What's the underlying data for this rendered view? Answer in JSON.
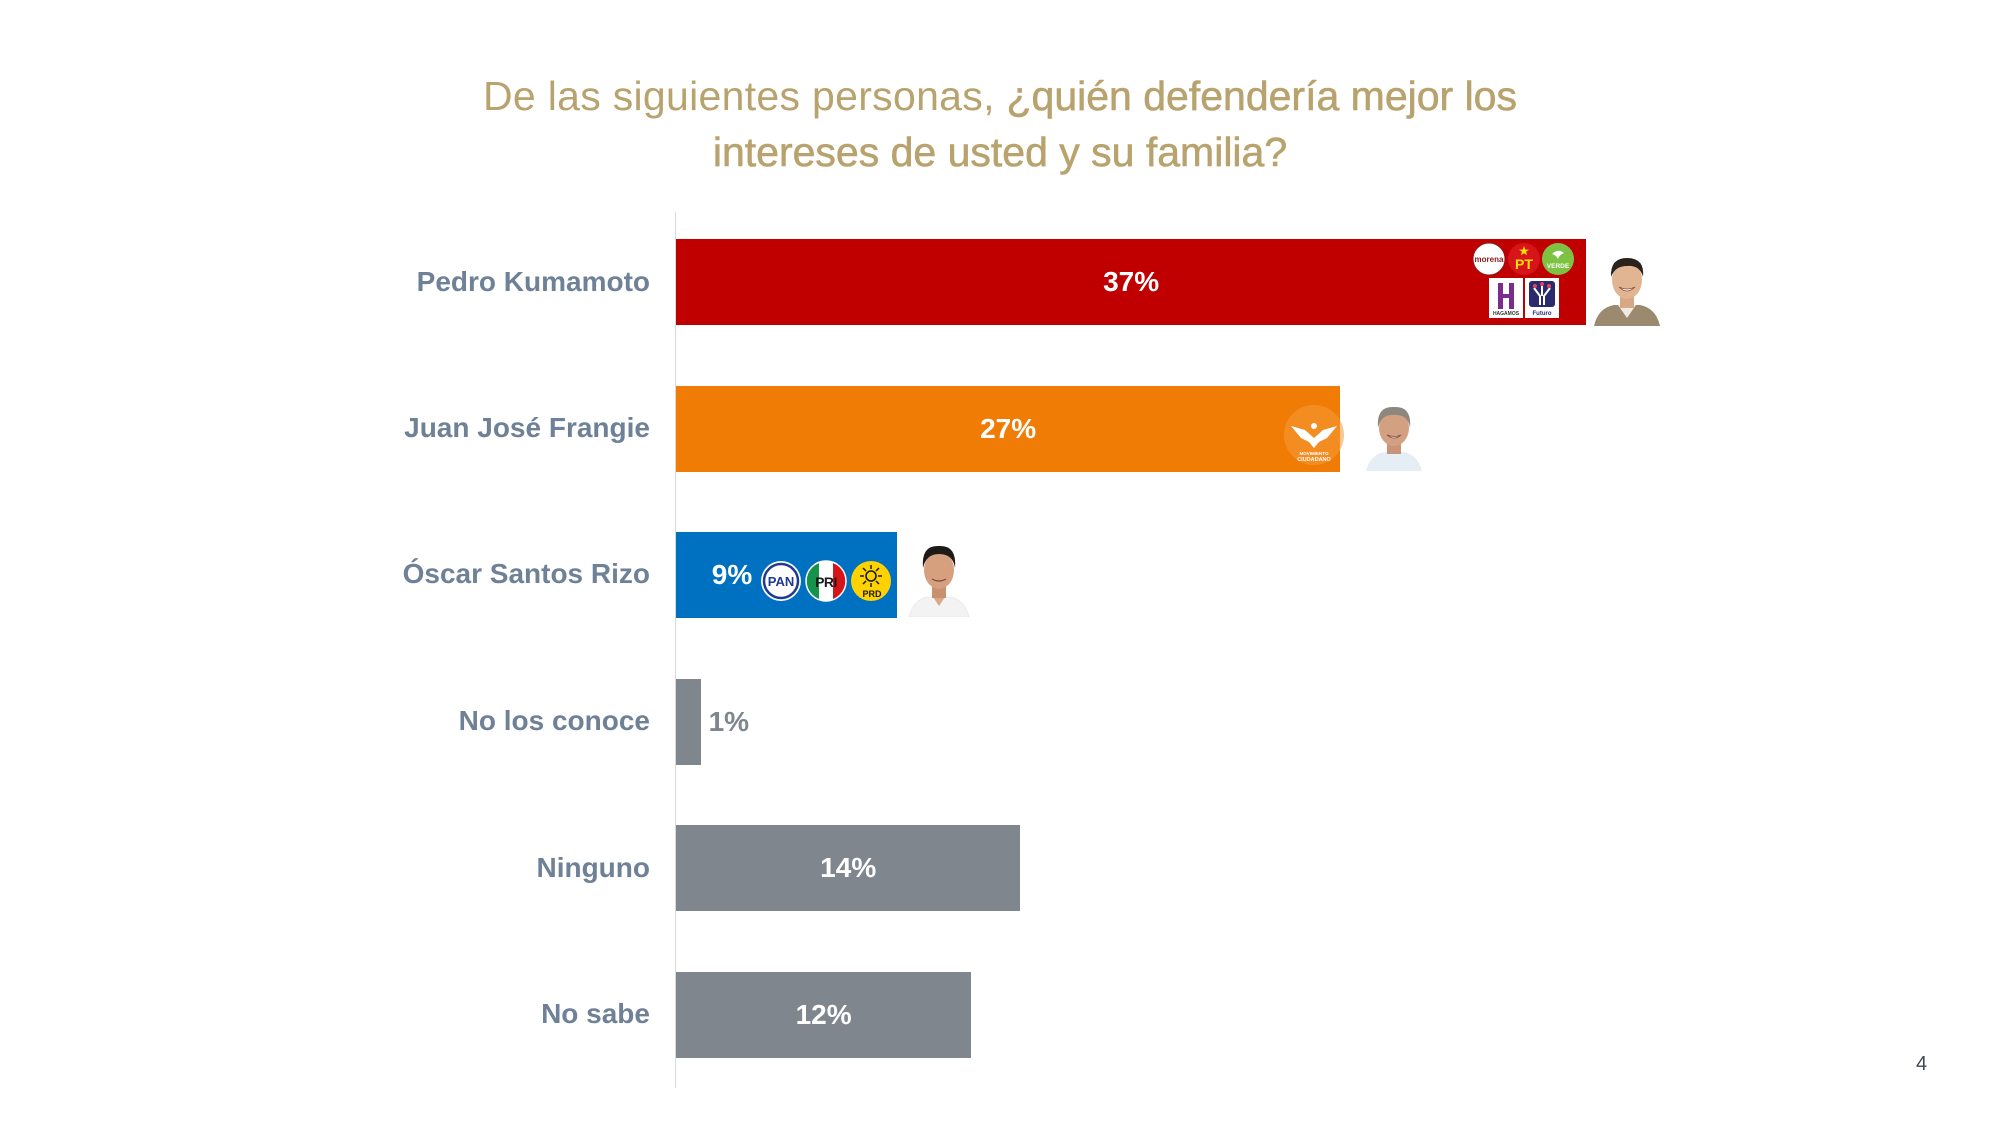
{
  "title": {
    "part_light": "De las siguientes personas, ",
    "part_strong_1": "¿quién defendería mejor los",
    "part_strong_2": "intereses de usted y su familia?"
  },
  "page_number": "4",
  "colors": {
    "title": "#B8A36E",
    "category_label": "#6E8196",
    "morena": "#C00000",
    "mc": "#F07C05",
    "pan": "#0070C0",
    "other": "#7F868E",
    "axis": "#D9D9D9"
  },
  "party_logos": {
    "morena": "morena",
    "pt": "PT",
    "verde": "VERDE",
    "hagamos": "HAGAMOS",
    "futuro": "Futuro",
    "mc_line1": "MOVIMIENTO",
    "mc_line2": "CIUDADANO",
    "pan": "PAN",
    "pri": "PRI",
    "prd": "PRD"
  },
  "chart_data": {
    "type": "bar",
    "orientation": "horizontal",
    "title": "De las siguientes personas, ¿quién defendería mejor los intereses de usted y su familia?",
    "xlabel": "",
    "ylabel": "",
    "xlim": [
      0,
      37
    ],
    "grid": false,
    "categories": [
      "Pedro Kumamoto",
      "Juan José Frangie",
      "Óscar Santos Rizo",
      "No los conoce",
      "Ninguno",
      "No sabe"
    ],
    "values": [
      37,
      27,
      9,
      1,
      14,
      12
    ],
    "value_labels": [
      "37%",
      "27%",
      "9%",
      "1%",
      "14%",
      "12%"
    ],
    "bar_colors": [
      "#C00000",
      "#F07C05",
      "#0070C0",
      "#7F868E",
      "#7F868E",
      "#7F868E"
    ],
    "unit": "%"
  }
}
